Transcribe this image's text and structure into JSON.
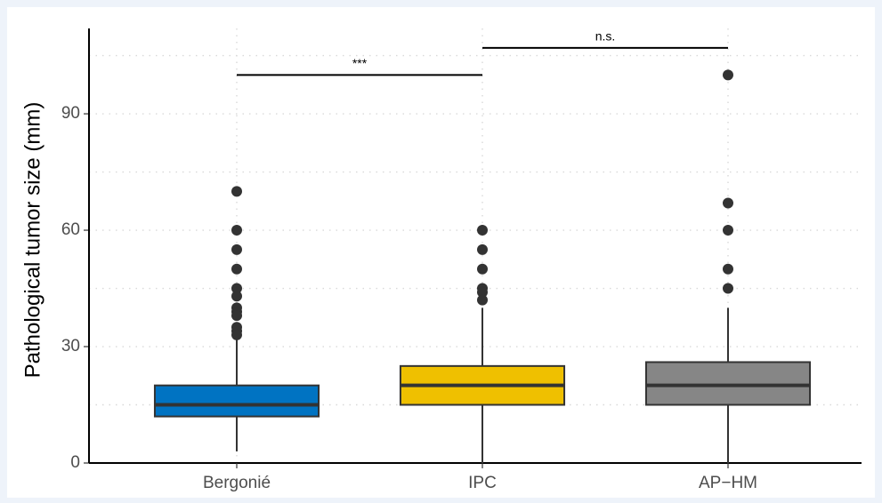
{
  "chart_data": {
    "type": "boxplot",
    "ylabel": "Pathological tumor size (mm)",
    "categories": [
      "Bergonié",
      "IPC",
      "AP−HM"
    ],
    "boxes": [
      {
        "low": 3,
        "q1": 12,
        "median": 15,
        "q3": 20,
        "high": 32,
        "color": "#0073c2",
        "outliers": [
          70,
          60,
          55,
          50,
          45,
          43,
          40,
          39,
          38,
          35,
          34,
          33
        ]
      },
      {
        "low": 0,
        "q1": 15,
        "median": 20,
        "q3": 25,
        "high": 40,
        "color": "#efc000",
        "outliers": [
          60,
          55,
          50,
          45,
          44,
          42
        ]
      },
      {
        "low": 0,
        "q1": 15,
        "median": 20,
        "q3": 26,
        "high": 40,
        "color": "#868686",
        "outliers": [
          100,
          67,
          60,
          50,
          45
        ]
      }
    ],
    "annotations": [
      {
        "label": "***",
        "groups": [
          0,
          1
        ],
        "y": 100
      },
      {
        "label": "n.s.",
        "groups": [
          1,
          2
        ],
        "y": 107
      }
    ],
    "ylim": [
      0,
      112
    ],
    "yticks": [
      0,
      30,
      60,
      90
    ],
    "minor_grid": [
      15,
      45,
      75,
      105
    ],
    "grid": true
  }
}
